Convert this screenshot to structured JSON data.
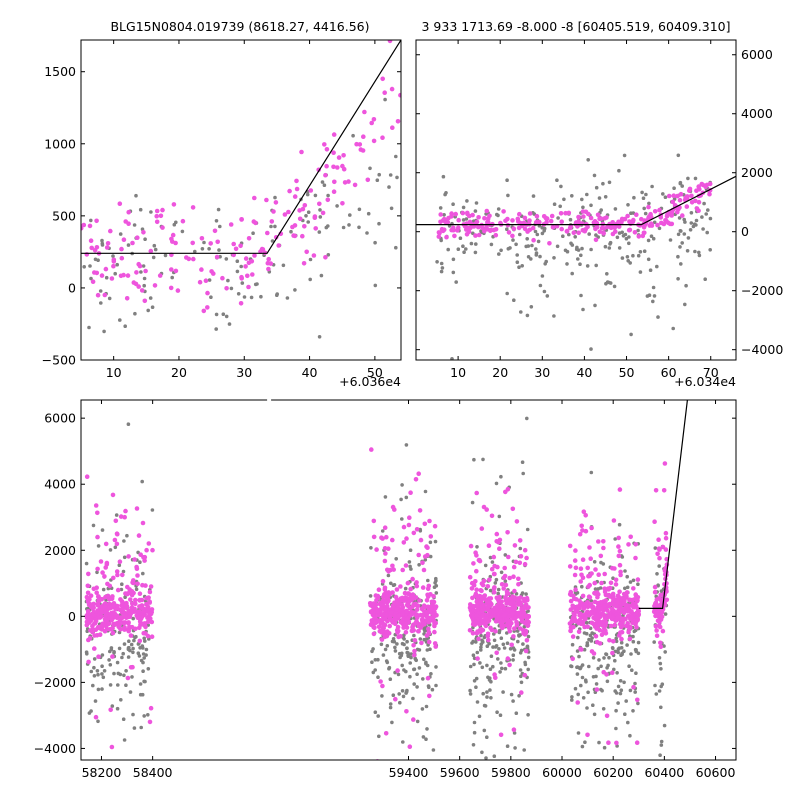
{
  "colors": {
    "gray": "#808080",
    "pink": "#ee55dd",
    "model": "#000000"
  },
  "chart_data": [
    {
      "type": "scatter",
      "title": "BLG15N0804.019739 (8618.27, 4416.56)",
      "x_offset_label": "+6.036e4",
      "xlim": [
        5,
        54
      ],
      "ylim": [
        -500,
        1720
      ],
      "xticks": [
        10,
        20,
        30,
        40,
        50
      ],
      "xtick_labels": [
        "10",
        "20",
        "30",
        "40",
        "50"
      ],
      "yticks": [
        -500,
        0,
        500,
        1000,
        1500
      ],
      "ytick_labels": [
        "−500",
        "0",
        "500",
        "1000",
        "1500"
      ],
      "yaxis_side": "left",
      "model_line": {
        "x": [
          5,
          33.5,
          54
        ],
        "y": [
          240,
          240,
          1720
        ]
      },
      "series": [
        {
          "color": "gray",
          "n": 150,
          "xr": [
            5,
            54
          ],
          "trend": {
            "type": "break",
            "base": 200,
            "x0": 33.5,
            "slope": 25,
            "sd": 230
          }
        },
        {
          "color": "pink",
          "n": 190,
          "xr": [
            5,
            54
          ],
          "trend": {
            "type": "break",
            "base": 230,
            "x0": 33.5,
            "slope": 55,
            "sd": 180
          }
        }
      ]
    },
    {
      "type": "scatter",
      "title": "3 933 1713.69 -8.000 -8 [60405.519, 60409.310]",
      "x_offset_label": "+6.034e4",
      "xlim": [
        0,
        76
      ],
      "ylim": [
        -4350,
        6500
      ],
      "xticks": [
        10,
        20,
        30,
        40,
        50,
        60,
        70
      ],
      "xtick_labels": [
        "10",
        "20",
        "30",
        "40",
        "50",
        "60",
        "70"
      ],
      "yticks": [
        -4000,
        -2000,
        0,
        2000,
        4000,
        6000
      ],
      "ytick_labels": [
        "−4000",
        "−2000",
        "0",
        "2000",
        "4000",
        "6000"
      ],
      "yaxis_side": "right",
      "model_line": {
        "x": [
          0,
          53.5,
          76
        ],
        "y": [
          240,
          240,
          1880
        ]
      },
      "series": [
        {
          "color": "gray",
          "n": 300,
          "xr": [
            5,
            70
          ],
          "trend": {
            "type": "break",
            "base": 80,
            "x0": 53.5,
            "slope": 35,
            "sd": 900
          }
        },
        {
          "color": "pink",
          "n": 270,
          "xr": [
            5,
            70
          ],
          "trend": {
            "type": "break",
            "base": 230,
            "x0": 53.5,
            "slope": 75,
            "sd": 220
          }
        }
      ]
    },
    {
      "type": "scatter",
      "title": "",
      "xlim": [
        58120,
        60680
      ],
      "ylim": [
        -4350,
        6550
      ],
      "xticks": [
        58200,
        58400,
        59400,
        59600,
        59800,
        60000,
        60200,
        60400,
        60600
      ],
      "xtick_labels": [
        "58200",
        "58400",
        "59400",
        "59600",
        "59800",
        "60000",
        "60200",
        "60400",
        "60600"
      ],
      "yticks": [
        -4000,
        -2000,
        0,
        2000,
        4000,
        6000
      ],
      "ytick_labels": [
        "−4000",
        "−2000",
        "0",
        "2000",
        "4000",
        "6000"
      ],
      "yaxis_side": "left",
      "axis_break": {
        "between": [
          58400,
          59260
        ]
      },
      "model_line": {
        "x": [
          60300,
          60393,
          60490
        ],
        "y": [
          240,
          240,
          6550
        ]
      },
      "seasons": [
        {
          "xr": [
            58140,
            58400
          ],
          "n_gray": 190,
          "n_pink": 360
        },
        {
          "xr": [
            59250,
            59510
          ],
          "n_gray": 230,
          "n_pink": 420
        },
        {
          "xr": [
            59640,
            59870
          ],
          "n_gray": 230,
          "n_pink": 400
        },
        {
          "xr": [
            60030,
            60300
          ],
          "n_gray": 230,
          "n_pink": 400
        },
        {
          "xr": [
            60360,
            60410
          ],
          "n_gray": 45,
          "n_pink": 90,
          "rise_from": 60395
        }
      ]
    }
  ]
}
